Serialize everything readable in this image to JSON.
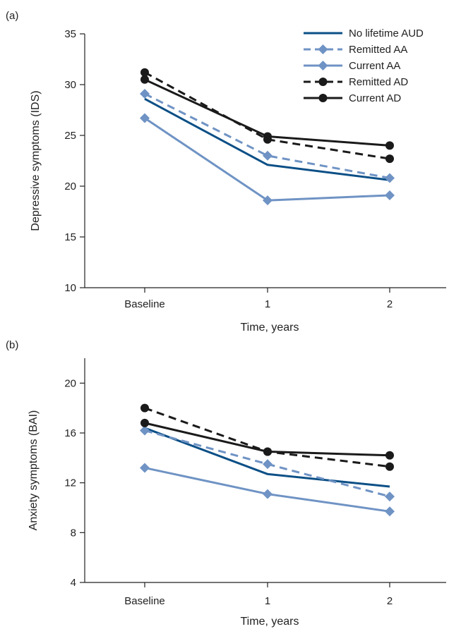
{
  "colors": {
    "no_lifetime_aud": "#0b4f86",
    "remitted_aa": "#6f93c4",
    "current_aa": "#6f93c4",
    "remitted_ad": "#1a1a1a",
    "current_ad": "#1a1a1a"
  },
  "chart_data": [
    {
      "type": "line",
      "panel_label": "(a)",
      "xlabel": "Time, years",
      "ylabel": "Depressive symptoms (IDS)",
      "categories": [
        "Baseline",
        "1",
        "2"
      ],
      "ylim": [
        10,
        35
      ],
      "yticks": [
        10,
        15,
        20,
        25,
        30,
        35
      ],
      "legend_position": "top-right",
      "series": [
        {
          "key": "no_lifetime_aud",
          "name": "No lifetime AUD",
          "values": [
            28.6,
            22.1,
            20.6
          ],
          "style": "solid",
          "marker": "none"
        },
        {
          "key": "remitted_aa",
          "name": "Remitted AA",
          "values": [
            29.1,
            23.0,
            20.8
          ],
          "style": "dashed",
          "marker": "diamond"
        },
        {
          "key": "current_aa",
          "name": "Current AA",
          "values": [
            26.7,
            18.6,
            19.1
          ],
          "style": "solid",
          "marker": "diamond"
        },
        {
          "key": "remitted_ad",
          "name": "Remitted AD",
          "values": [
            31.2,
            24.6,
            22.7
          ],
          "style": "dashed",
          "marker": "circle"
        },
        {
          "key": "current_ad",
          "name": "Current AD",
          "values": [
            30.5,
            24.9,
            24.0
          ],
          "style": "solid",
          "marker": "circle"
        }
      ]
    },
    {
      "type": "line",
      "panel_label": "(b)",
      "xlabel": "Time, years",
      "ylabel": "Anxiety symptoms (BAI)",
      "categories": [
        "Baseline",
        "1",
        "2"
      ],
      "ylim": [
        4,
        22
      ],
      "yticks": [
        4,
        8,
        12,
        16,
        20
      ],
      "series": [
        {
          "key": "no_lifetime_aud",
          "name": "No lifetime AUD",
          "values": [
            16.4,
            12.7,
            11.7
          ],
          "style": "solid",
          "marker": "none"
        },
        {
          "key": "remitted_aa",
          "name": "Remitted AA",
          "values": [
            16.2,
            13.5,
            10.9
          ],
          "style": "dashed",
          "marker": "diamond"
        },
        {
          "key": "current_aa",
          "name": "Current AA",
          "values": [
            13.2,
            11.1,
            9.7
          ],
          "style": "solid",
          "marker": "diamond"
        },
        {
          "key": "remitted_ad",
          "name": "Remitted AD",
          "values": [
            18.0,
            14.5,
            13.3
          ],
          "style": "dashed",
          "marker": "circle"
        },
        {
          "key": "current_ad",
          "name": "Current AD",
          "values": [
            16.8,
            14.5,
            14.2
          ],
          "style": "solid",
          "marker": "circle"
        }
      ]
    }
  ]
}
